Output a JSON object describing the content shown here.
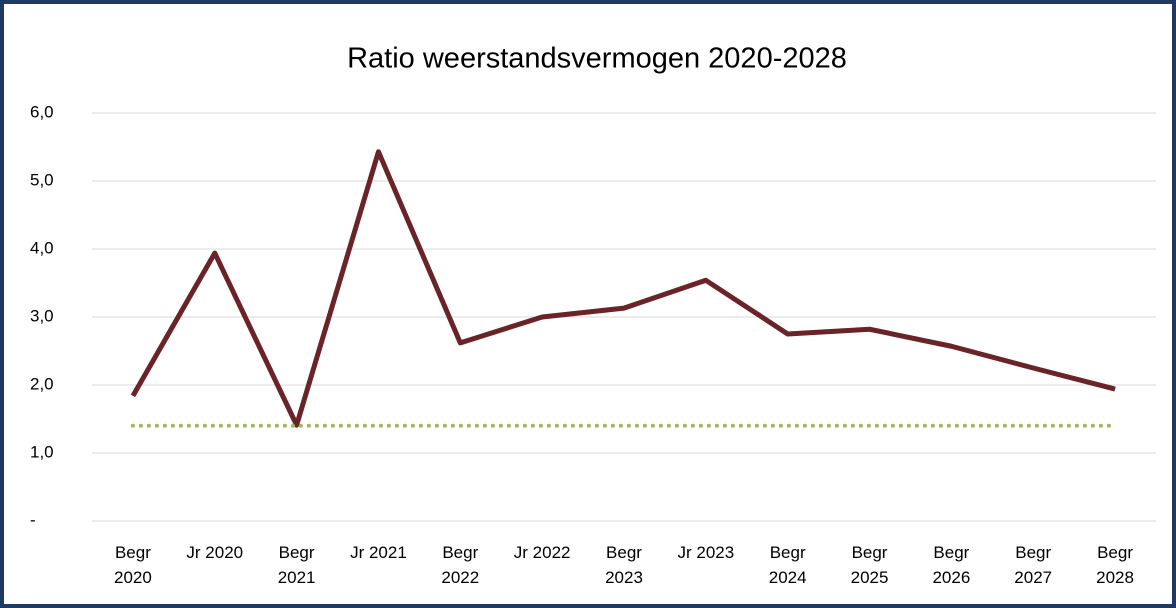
{
  "chart_data": {
    "type": "line",
    "title": "Ratio weerstandsvermogen 2020-2028",
    "categories": [
      "Begr 2020",
      "Jr 2020",
      "Begr 2021",
      "Jr 2021",
      "Begr 2022",
      "Jr 2022",
      "Begr 2023",
      "Jr 2023",
      "Begr 2024",
      "Begr 2025",
      "Begr 2026",
      "Begr 2027",
      "Begr 2028"
    ],
    "series": [
      {
        "color": "#6a2327",
        "values": [
          1.84,
          3.94,
          1.41,
          5.43,
          2.62,
          3.0,
          3.13,
          3.54,
          2.75,
          2.82,
          2.57,
          2.25,
          1.94
        ]
      },
      {
        "color": "#9bbb59",
        "style": "dotted",
        "values": [
          1.4,
          1.4,
          1.4,
          1.4,
          1.4,
          1.4,
          1.4,
          1.4,
          1.4,
          1.4,
          1.4,
          1.4,
          1.4
        ]
      }
    ],
    "ylim": [
      0,
      6
    ],
    "yticks": [
      {
        "value": 0,
        "label": "-"
      },
      {
        "value": 1,
        "label": "1,0"
      },
      {
        "value": 2,
        "label": "2,0"
      },
      {
        "value": 3,
        "label": "3,0"
      },
      {
        "value": 4,
        "label": "4,0"
      },
      {
        "value": 5,
        "label": "5,0"
      },
      {
        "value": 6,
        "label": "6,0"
      }
    ],
    "grid": true
  }
}
